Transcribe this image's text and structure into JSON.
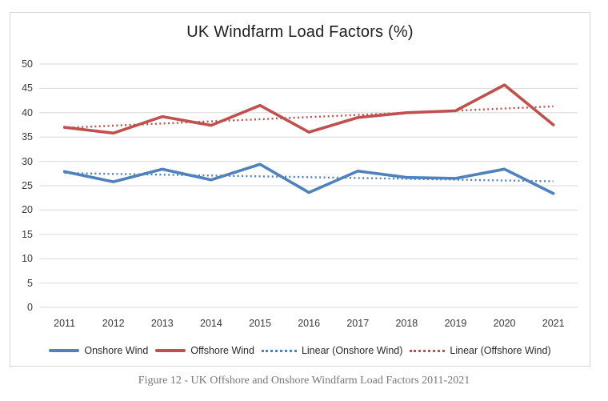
{
  "caption": "Figure 12 - UK Offshore and Onshore Windfarm Load Factors 2011-2021",
  "chart_data": {
    "type": "line",
    "title": "UK Windfarm Load Factors (%)",
    "categories": [
      "2011",
      "2012",
      "2013",
      "2014",
      "2015",
      "2016",
      "2017",
      "2018",
      "2019",
      "2020",
      "2021"
    ],
    "series": [
      {
        "name": "Onshore Wind",
        "color": "#4F81BD",
        "values": [
          27.9,
          25.8,
          28.4,
          26.2,
          29.4,
          23.6,
          28.0,
          26.7,
          26.5,
          28.4,
          23.4
        ]
      },
      {
        "name": "Offshore Wind",
        "color": "#C0504D",
        "values": [
          37.0,
          35.8,
          39.2,
          37.4,
          41.5,
          36.0,
          39.0,
          40.0,
          40.4,
          45.7,
          37.5
        ]
      }
    ],
    "trendlines": [
      {
        "name": "Linear (Onshore Wind)",
        "color": "#4F81BD",
        "start": 27.6,
        "end": 25.9
      },
      {
        "name": "Linear (Offshore Wind)",
        "color": "#C0504D",
        "start": 36.9,
        "end": 41.3
      }
    ],
    "ylim": [
      0,
      50
    ],
    "yticks": [
      0,
      5,
      10,
      15,
      20,
      25,
      30,
      35,
      40,
      45,
      50
    ],
    "grid": "horizontal",
    "gridline_color": "#D9D9D9",
    "frame_border_color": "#D6D6D6",
    "legend_position": "bottom"
  }
}
